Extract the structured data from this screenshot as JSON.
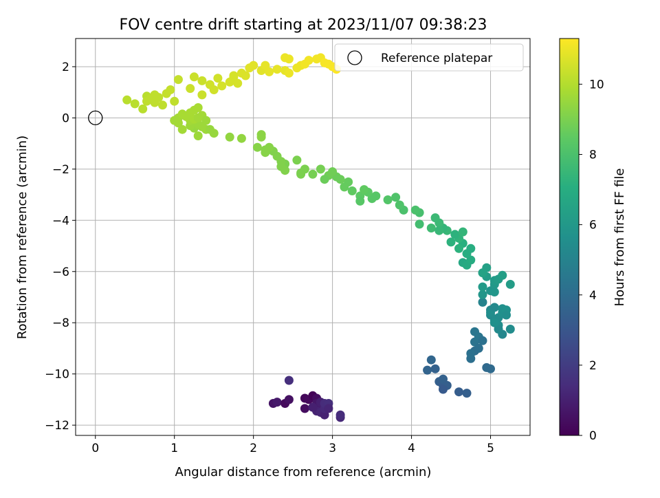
{
  "chart_data": {
    "type": "scatter",
    "title": "FOV centre drift starting at 2023/11/07 09:38:23",
    "xlabel": "Angular distance from reference (arcmin)",
    "ylabel": "Rotation from reference (arcmin)",
    "xlim": [
      -0.25,
      5.5
    ],
    "ylim": [
      -12.4,
      3.1
    ],
    "x_ticks": [
      0,
      1,
      2,
      3,
      4,
      5
    ],
    "y_ticks": [
      -12,
      -10,
      -8,
      -6,
      -4,
      -2,
      0,
      2
    ],
    "grid": true,
    "legend": {
      "placement": "top-right",
      "entries": [
        "Reference platepar"
      ]
    },
    "colorbar": {
      "label": "Hours from first FF file",
      "range": [
        0,
        11.3
      ],
      "ticks": [
        0,
        2,
        4,
        6,
        8,
        10
      ],
      "colormap": "viridis"
    },
    "reference_point": {
      "x": 0,
      "y": 0,
      "label": "Reference platepar"
    },
    "series": [
      {
        "note_columns": [
          "x",
          "y",
          "hours"
        ],
        "points": [
          [
            2.25,
            -11.15,
            0.6
          ],
          [
            2.3,
            -11.1,
            0.8
          ],
          [
            2.4,
            -11.15,
            0.3
          ],
          [
            2.45,
            -11.0,
            0.5
          ],
          [
            2.45,
            -10.25,
            1.5
          ],
          [
            2.65,
            -10.95,
            0.2
          ],
          [
            2.7,
            -11.0,
            0.3
          ],
          [
            2.65,
            -11.35,
            0.4
          ],
          [
            2.75,
            -10.85,
            0.1
          ],
          [
            2.8,
            -10.95,
            0.4
          ],
          [
            2.8,
            -11.15,
            0.7
          ],
          [
            2.85,
            -11.2,
            0.9
          ],
          [
            2.85,
            -11.1,
            1.0
          ],
          [
            2.8,
            -11.45,
            1.1
          ],
          [
            2.85,
            -11.5,
            1.2
          ],
          [
            2.9,
            -11.6,
            1.1
          ],
          [
            2.9,
            -11.35,
            1.3
          ],
          [
            2.9,
            -11.15,
            1.4
          ],
          [
            2.95,
            -11.15,
            1.5
          ],
          [
            3.1,
            -11.7,
            1.3
          ],
          [
            3.1,
            -11.6,
            1.4
          ],
          [
            2.75,
            -11.3,
            1.0
          ],
          [
            2.95,
            -11.35,
            1.2
          ],
          [
            4.2,
            -9.85,
            3.6
          ],
          [
            4.25,
            -9.45,
            3.7
          ],
          [
            4.3,
            -9.8,
            3.5
          ],
          [
            4.35,
            -10.3,
            3.4
          ],
          [
            4.4,
            -10.45,
            3.3
          ],
          [
            4.4,
            -10.2,
            3.5
          ],
          [
            4.45,
            -10.45,
            3.4
          ],
          [
            4.4,
            -10.6,
            3.2
          ],
          [
            4.6,
            -10.7,
            3.3
          ],
          [
            4.7,
            -10.75,
            3.4
          ],
          [
            4.75,
            -9.4,
            4.1
          ],
          [
            4.8,
            -9.1,
            4.0
          ],
          [
            4.75,
            -9.2,
            4.2
          ],
          [
            4.8,
            -8.75,
            4.3
          ],
          [
            4.85,
            -9.0,
            4.1
          ],
          [
            4.8,
            -8.35,
            4.4
          ],
          [
            4.85,
            -8.55,
            4.4
          ],
          [
            4.9,
            -8.7,
            4.2
          ],
          [
            4.95,
            -9.75,
            3.9
          ],
          [
            5.0,
            -9.8,
            3.9
          ],
          [
            4.9,
            -7.2,
            5.0
          ],
          [
            5.0,
            -7.5,
            5.2
          ],
          [
            5.0,
            -7.7,
            5.3
          ],
          [
            5.05,
            -7.9,
            5.4
          ],
          [
            5.0,
            -7.6,
            5.5
          ],
          [
            5.05,
            -7.4,
            5.3
          ],
          [
            5.1,
            -7.8,
            5.4
          ],
          [
            5.1,
            -8.1,
            5.5
          ],
          [
            5.15,
            -7.6,
            5.6
          ],
          [
            5.15,
            -7.45,
            5.6
          ],
          [
            5.2,
            -7.5,
            5.7
          ],
          [
            5.2,
            -7.7,
            5.5
          ],
          [
            5.25,
            -8.25,
            5.4
          ],
          [
            5.15,
            -8.45,
            5.2
          ],
          [
            5.1,
            -8.25,
            5.3
          ],
          [
            5.05,
            -8.0,
            5.6
          ],
          [
            5.0,
            -6.75,
            5.8
          ],
          [
            4.9,
            -6.9,
            5.9
          ],
          [
            5.05,
            -6.5,
            6.0
          ],
          [
            4.9,
            -6.6,
            6.1
          ],
          [
            4.95,
            -6.2,
            6.2
          ],
          [
            5.05,
            -6.35,
            6.1
          ],
          [
            5.1,
            -6.3,
            6.2
          ],
          [
            5.15,
            -6.15,
            6.3
          ],
          [
            5.25,
            -6.5,
            6.2
          ],
          [
            5.05,
            -6.8,
            5.9
          ],
          [
            4.95,
            -5.85,
            6.4
          ],
          [
            4.9,
            -6.05,
            6.5
          ],
          [
            4.65,
            -5.65,
            6.7
          ],
          [
            4.7,
            -5.75,
            6.8
          ],
          [
            4.75,
            -5.55,
            6.9
          ],
          [
            4.7,
            -5.3,
            7.0
          ],
          [
            4.75,
            -5.1,
            7.0
          ],
          [
            4.65,
            -4.9,
            7.1
          ],
          [
            4.6,
            -5.1,
            7.2
          ],
          [
            4.6,
            -4.7,
            7.3
          ],
          [
            4.55,
            -4.55,
            7.2
          ],
          [
            4.65,
            -4.45,
            7.4
          ],
          [
            4.5,
            -4.85,
            7.2
          ],
          [
            4.45,
            -4.4,
            7.5
          ],
          [
            4.4,
            -4.3,
            7.4
          ],
          [
            4.35,
            -4.1,
            7.6
          ],
          [
            4.3,
            -3.9,
            7.6
          ],
          [
            4.25,
            -4.3,
            7.7
          ],
          [
            4.35,
            -4.4,
            7.5
          ],
          [
            4.1,
            -4.15,
            7.8
          ],
          [
            4.1,
            -3.7,
            7.9
          ],
          [
            4.05,
            -3.6,
            8.0
          ],
          [
            3.9,
            -3.6,
            8.0
          ],
          [
            3.85,
            -3.4,
            8.1
          ],
          [
            3.8,
            -3.1,
            8.1
          ],
          [
            3.7,
            -3.2,
            8.2
          ],
          [
            3.55,
            -3.05,
            8.3
          ],
          [
            3.5,
            -3.15,
            8.3
          ],
          [
            3.45,
            -2.9,
            8.4
          ],
          [
            3.35,
            -3.05,
            8.4
          ],
          [
            3.35,
            -3.25,
            8.3
          ],
          [
            3.4,
            -2.8,
            8.5
          ],
          [
            3.25,
            -2.85,
            8.5
          ],
          [
            3.2,
            -2.5,
            8.6
          ],
          [
            3.15,
            -2.7,
            8.6
          ],
          [
            3.1,
            -2.4,
            8.7
          ],
          [
            3.05,
            -2.3,
            8.7
          ],
          [
            3.0,
            -2.1,
            8.8
          ],
          [
            2.95,
            -2.25,
            8.8
          ],
          [
            2.9,
            -2.4,
            8.7
          ],
          [
            2.85,
            -2.0,
            8.9
          ],
          [
            2.75,
            -2.2,
            8.9
          ],
          [
            2.65,
            -2.0,
            9.0
          ],
          [
            2.6,
            -2.15,
            9.0
          ],
          [
            2.55,
            -1.65,
            9.0
          ],
          [
            2.6,
            -2.2,
            9.0
          ],
          [
            2.4,
            -1.8,
            9.0
          ],
          [
            2.4,
            -2.05,
            9.1
          ],
          [
            2.35,
            -1.7,
            9.1
          ],
          [
            2.3,
            -1.5,
            9.1
          ],
          [
            2.25,
            -1.3,
            9.1
          ],
          [
            2.15,
            -1.35,
            9.2
          ],
          [
            2.2,
            -1.15,
            9.2
          ],
          [
            2.15,
            -1.25,
            9.2
          ],
          [
            2.05,
            -1.15,
            9.2
          ],
          [
            2.35,
            -1.9,
            9.1
          ],
          [
            2.1,
            -0.65,
            9.3
          ],
          [
            2.1,
            -0.75,
            9.3
          ],
          [
            1.85,
            -0.8,
            9.4
          ],
          [
            1.7,
            -0.75,
            9.4
          ],
          [
            1.5,
            -0.6,
            9.5
          ],
          [
            1.4,
            -0.45,
            9.6
          ],
          [
            1.3,
            -0.7,
            9.6
          ],
          [
            1.25,
            -0.4,
            9.5
          ],
          [
            1.2,
            -0.3,
            9.6
          ],
          [
            1.1,
            -0.45,
            9.7
          ],
          [
            1.05,
            -0.2,
            9.7
          ],
          [
            1.0,
            -0.1,
            9.7
          ],
          [
            1.05,
            0.0,
            9.7
          ],
          [
            1.1,
            0.15,
            9.8
          ],
          [
            1.2,
            0.2,
            9.8
          ],
          [
            1.25,
            0.3,
            9.8
          ],
          [
            1.3,
            0.4,
            9.8
          ],
          [
            1.35,
            0.1,
            9.7
          ],
          [
            1.4,
            -0.1,
            9.6
          ],
          [
            1.3,
            -0.25,
            9.6
          ],
          [
            1.2,
            -0.1,
            9.7
          ],
          [
            1.15,
            0.05,
            9.8
          ],
          [
            1.25,
            -0.05,
            9.8
          ],
          [
            1.3,
            0.0,
            9.7
          ],
          [
            1.35,
            -0.35,
            9.6
          ],
          [
            1.45,
            -0.45,
            9.5
          ],
          [
            1.0,
            0.65,
            10.2
          ],
          [
            1.05,
            1.5,
            10.3
          ],
          [
            0.4,
            0.7,
            10.1
          ],
          [
            0.5,
            0.55,
            10.1
          ],
          [
            0.6,
            0.35,
            10.1
          ],
          [
            0.65,
            0.85,
            10.1
          ],
          [
            0.7,
            0.75,
            10.2
          ],
          [
            0.75,
            0.6,
            10.2
          ],
          [
            0.8,
            0.8,
            10.2
          ],
          [
            0.85,
            0.5,
            10.2
          ],
          [
            0.9,
            0.95,
            10.3
          ],
          [
            0.95,
            1.1,
            10.3
          ],
          [
            0.75,
            0.9,
            10.2
          ],
          [
            0.65,
            0.65,
            10.2
          ],
          [
            1.2,
            1.15,
            10.4
          ],
          [
            1.25,
            1.6,
            10.4
          ],
          [
            1.35,
            1.45,
            10.4
          ],
          [
            1.35,
            0.9,
            10.4
          ],
          [
            1.45,
            1.3,
            10.5
          ],
          [
            1.5,
            1.1,
            10.5
          ],
          [
            1.55,
            1.55,
            10.5
          ],
          [
            1.6,
            1.25,
            10.6
          ],
          [
            1.7,
            1.4,
            10.6
          ],
          [
            1.75,
            1.6,
            10.6
          ],
          [
            1.8,
            1.35,
            10.6
          ],
          [
            1.85,
            1.75,
            10.7
          ],
          [
            1.9,
            1.65,
            10.7
          ],
          [
            1.95,
            1.95,
            10.8
          ],
          [
            2.0,
            2.05,
            10.8
          ],
          [
            2.1,
            1.85,
            10.8
          ],
          [
            2.2,
            1.8,
            10.9
          ],
          [
            2.3,
            1.9,
            10.9
          ],
          [
            2.4,
            1.85,
            10.9
          ],
          [
            2.45,
            1.75,
            11.0
          ],
          [
            2.4,
            2.35,
            11.0
          ],
          [
            2.45,
            2.3,
            11.0
          ],
          [
            2.55,
            1.95,
            11.0
          ],
          [
            2.6,
            2.05,
            11.0
          ],
          [
            2.65,
            2.1,
            11.1
          ],
          [
            2.7,
            2.25,
            11.1
          ],
          [
            2.8,
            2.3,
            11.1
          ],
          [
            2.85,
            2.35,
            11.1
          ],
          [
            2.9,
            2.15,
            11.2
          ],
          [
            2.95,
            2.1,
            11.2
          ],
          [
            3.0,
            2.0,
            11.2
          ],
          [
            3.05,
            1.9,
            11.3
          ],
          [
            2.15,
            2.05,
            10.9
          ],
          [
            1.75,
            1.65,
            10.6
          ]
        ]
      }
    ]
  }
}
